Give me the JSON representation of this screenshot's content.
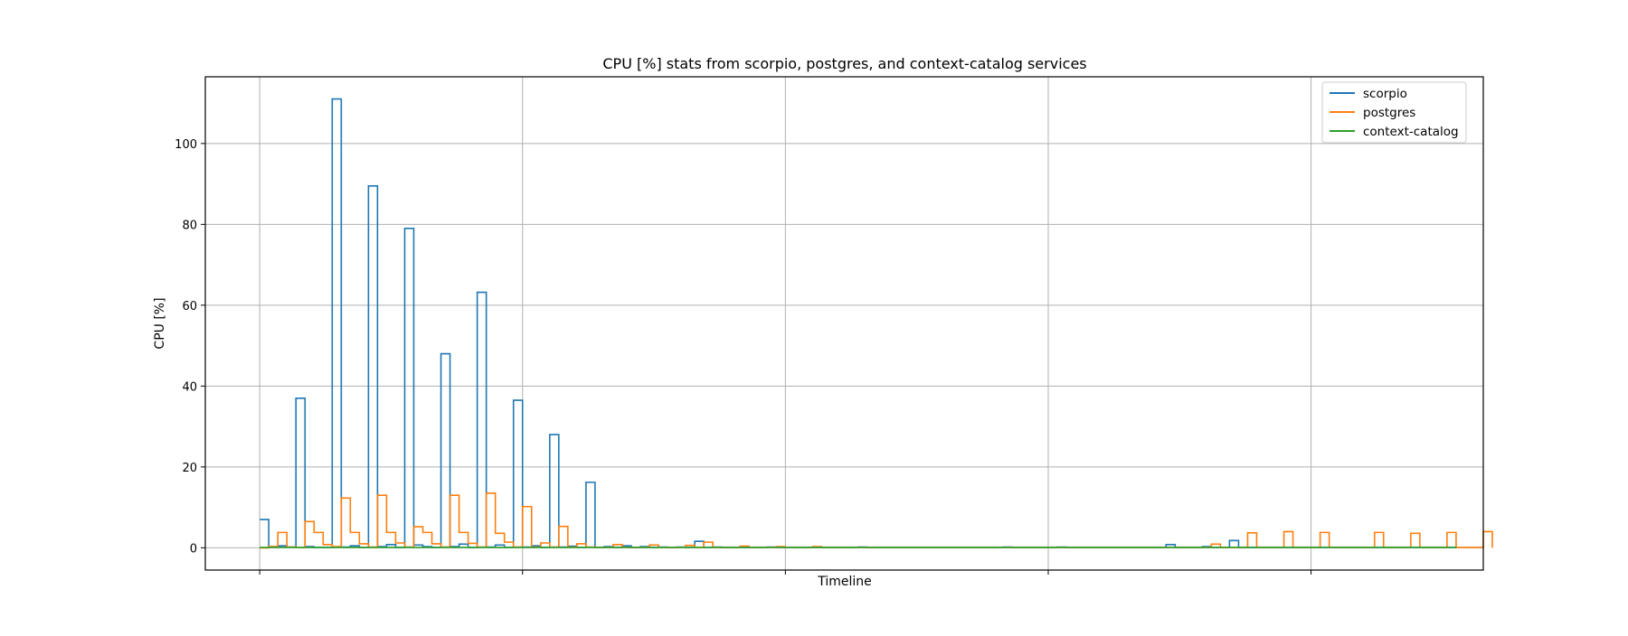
{
  "chart_data": {
    "type": "line",
    "step": "post",
    "title": "CPU [%] stats from scorpio, postgres, and context-catalog services",
    "xlabel": "Timeline",
    "ylabel": "CPU [%]",
    "x_tick_labels_shown": false,
    "xlim": [
      -6,
      135
    ],
    "ylim": [
      -5.5,
      116.5
    ],
    "yticks": [
      0,
      20,
      40,
      60,
      80,
      100
    ],
    "ytick_labels": [
      "0",
      "20",
      "40",
      "60",
      "80",
      "100"
    ],
    "grid": true,
    "legend": {
      "position": "top-right"
    },
    "series": [
      {
        "name": "scorpio",
        "color": "#1f77b4",
        "values": [
          7,
          0.3,
          0.5,
          0.2,
          37,
          0.3,
          0.1,
          0.1,
          111,
          0.2,
          0.5,
          0.1,
          89.5,
          0.3,
          0.8,
          0.1,
          79,
          0.7,
          0.3,
          0.1,
          48,
          0.3,
          0.9,
          0.1,
          63.2,
          0.2,
          0.7,
          0.1,
          36.5,
          0.2,
          0.5,
          0.1,
          28,
          0.2,
          0.4,
          0.1,
          16.2,
          0.1,
          0.3,
          0.1,
          0.5,
          0.1,
          0.3,
          0.1,
          0.2,
          0.1,
          0.2,
          0.1,
          1.6,
          0.1,
          0.2,
          0.1,
          0.1,
          0.1,
          0.1,
          0.1,
          0.2,
          0.1,
          0.1,
          0.1,
          0.1,
          0.1,
          0.1,
          0.1,
          0.1,
          0.1,
          0.2,
          0.1,
          0.1,
          0.1,
          0.1,
          0.1,
          0.1,
          0.1,
          0.1,
          0.1,
          0.1,
          0.1,
          0.1,
          0.1,
          0.1,
          0.1,
          0.2,
          0.1,
          0.1,
          0.1,
          0.1,
          0.1,
          0.2,
          0.1,
          0.1,
          0.1,
          0.1,
          0.1,
          0.1,
          0.1,
          0.1,
          0.1,
          0.1,
          0.1,
          0.8,
          0.1,
          0.1,
          0.1,
          0.3,
          0.1,
          0.1,
          1.8,
          0.1,
          0.1,
          0.1,
          0.1,
          0.1,
          0.1,
          0.1,
          0.1,
          0.1,
          0.1,
          0.1,
          0.1,
          0.1,
          0.1,
          0.1,
          0.1,
          0.1,
          0.1,
          0.1,
          0.1,
          0.1,
          0.1,
          0.1,
          0.1
        ]
      },
      {
        "name": "postgres",
        "color": "#ff7f0e",
        "values": [
          0,
          0.3,
          3.8,
          0.2,
          0.1,
          6.5,
          3.8,
          0.8,
          0.3,
          12.3,
          3.8,
          1,
          0.2,
          13,
          3.8,
          1.2,
          0.2,
          5.2,
          3.8,
          1,
          0.2,
          13,
          3.8,
          1.1,
          0.2,
          13.5,
          3.6,
          1.4,
          0.2,
          10.2,
          0.2,
          1.2,
          0.2,
          5.3,
          0.2,
          1,
          0.2,
          0.1,
          0.1,
          0.8,
          0.1,
          0.1,
          0.1,
          0.7,
          0.1,
          0.1,
          0.1,
          0.6,
          0.1,
          1.4,
          0.1,
          0.1,
          0.1,
          0.4,
          0.1,
          0.1,
          0.1,
          0.3,
          0.1,
          0.1,
          0.1,
          0.3,
          0.1,
          0.1,
          0.1,
          0.1,
          0.1,
          0.1,
          0.1,
          0.1,
          0.1,
          0.1,
          0.1,
          0.1,
          0.1,
          0.1,
          0.1,
          0.1,
          0.1,
          0.1,
          0.1,
          0.1,
          0.1,
          0.1,
          0.1,
          0.1,
          0.1,
          0.1,
          0.1,
          0.1,
          0.1,
          0.1,
          0.1,
          0.1,
          0.1,
          0.1,
          0.1,
          0.1,
          0.1,
          0.1,
          0.1,
          0.1,
          0.1,
          0.1,
          0.1,
          0.9,
          0.1,
          0.1,
          0.1,
          3.7,
          0.1,
          0.1,
          0.1,
          4,
          0.1,
          0.1,
          0.1,
          3.8,
          0.1,
          0.1,
          0.1,
          0.1,
          0.1,
          3.8,
          0.1,
          0.1,
          0.1,
          3.6,
          0.1,
          0.1,
          0.1,
          3.8,
          0.1,
          0.1,
          0.1,
          4
        ]
      },
      {
        "name": "context-catalog",
        "color": "#2ca02c",
        "values": [
          0.1,
          0.1,
          0.1,
          0.1,
          0.1,
          0.1,
          0.1,
          0.1,
          0.1,
          0.1,
          0.1,
          0.1,
          0.1,
          0.1,
          0.1,
          0.1,
          0.1,
          0.1,
          0.1,
          0.1,
          0.1,
          0.1,
          0.1,
          0.1,
          0.1,
          0.1,
          0.1,
          0.1,
          0.1,
          0.1,
          0.1,
          0.1,
          0.1,
          0.1,
          0.1,
          0.1,
          0.1,
          0.1,
          0.1,
          0.1,
          0.1,
          0.1,
          0.1,
          0.1,
          0.1,
          0.1,
          0.1,
          0.1,
          0.1,
          0.1,
          0.1,
          0.1,
          0.1,
          0.1,
          0.1,
          0.1,
          0.1,
          0.1,
          0.1,
          0.1,
          0.1,
          0.1,
          0.1,
          0.1,
          0.1,
          0.1,
          0.1,
          0.1,
          0.1,
          0.1,
          0.1,
          0.1,
          0.1,
          0.1,
          0.1,
          0.1,
          0.1,
          0.1,
          0.1,
          0.1,
          0.1,
          0.1,
          0.1,
          0.1,
          0.1,
          0.1,
          0.1,
          0.1,
          0.1,
          0.1,
          0.1,
          0.1,
          0.1,
          0.1,
          0.1,
          0.1,
          0.1,
          0.1,
          0.1,
          0.1,
          0.1,
          0.1,
          0.1,
          0.1,
          0.1,
          0.1,
          0.1,
          0.1,
          0.1,
          0.1,
          0.1,
          0.1,
          0.1,
          0.1,
          0.1,
          0.1,
          0.1,
          0.1,
          0.1,
          0.1,
          0.1,
          0.1,
          0.1,
          0.1,
          0.1,
          0.1,
          0.1,
          0.1,
          0.1,
          0.1,
          0.1,
          0.1
        ]
      }
    ]
  }
}
